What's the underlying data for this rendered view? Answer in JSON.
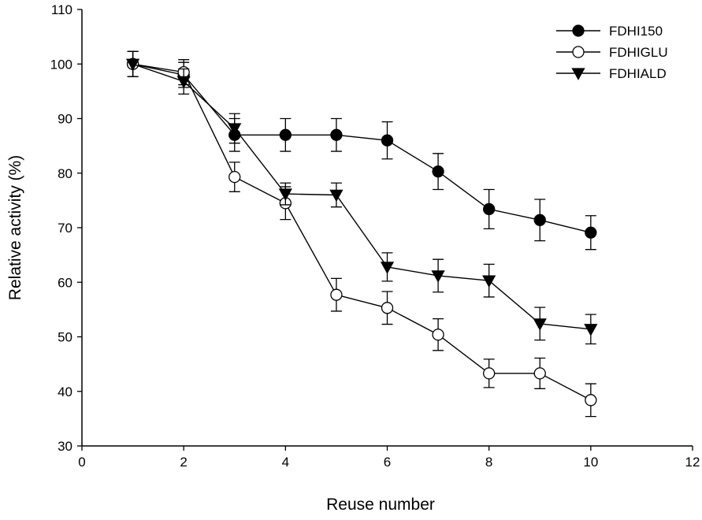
{
  "chart_data": {
    "type": "line",
    "title": "",
    "xlabel": "Reuse number",
    "ylabel": "Relative activity (%)",
    "xlim": [
      0,
      12
    ],
    "ylim": [
      30,
      110
    ],
    "xticks": [
      0,
      2,
      4,
      6,
      8,
      10,
      12
    ],
    "yticks": [
      30,
      40,
      50,
      60,
      70,
      80,
      90,
      100,
      110
    ],
    "grid": false,
    "legend_position": "top-right",
    "x": [
      1,
      2,
      3,
      4,
      5,
      6,
      7,
      8,
      9,
      10
    ],
    "series": [
      {
        "name": "FDHI150",
        "marker": "filled-circle",
        "values": [
          100,
          98,
          87,
          87,
          87,
          86,
          80.3,
          73.4,
          71.4,
          69.1
        ],
        "errors": [
          2.3,
          2.3,
          3,
          3,
          3,
          3.4,
          3.3,
          3.6,
          3.8,
          3.1
        ]
      },
      {
        "name": "FDHIGLU",
        "marker": "open-circle",
        "values": [
          100,
          98.5,
          79.3,
          74.5,
          57.7,
          55.3,
          50.4,
          43.3,
          43.3,
          38.4
        ],
        "errors": [
          2.3,
          2.3,
          2.7,
          3,
          3,
          3,
          2.9,
          2.6,
          2.8,
          3
        ]
      },
      {
        "name": "FDHIALD",
        "marker": "filled-triangle-down",
        "values": [
          100,
          96.8,
          88.2,
          76.2,
          76,
          62.8,
          61.2,
          60.3,
          52.4,
          51.4
        ],
        "errors": [
          2.3,
          2.3,
          2.7,
          2,
          2.2,
          2.6,
          3,
          3,
          3,
          2.7
        ]
      }
    ]
  }
}
